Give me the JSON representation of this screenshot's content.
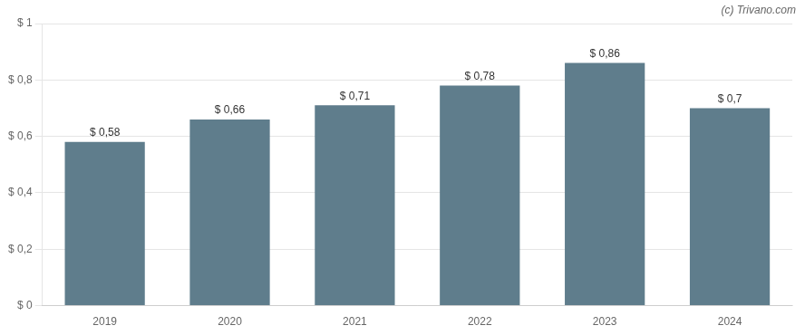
{
  "chart_data": {
    "type": "bar",
    "categories": [
      "2019",
      "2020",
      "2021",
      "2022",
      "2023",
      "2024"
    ],
    "values": [
      0.58,
      0.66,
      0.71,
      0.78,
      0.86,
      0.7
    ],
    "value_labels": [
      "$ 0,58",
      "$ 0,66",
      "$ 0,71",
      "$ 0,78",
      "$ 0,86",
      "$ 0,7"
    ],
    "data_labels": true,
    "color": "#5f7d8c",
    "ylim": [
      0,
      1.0
    ],
    "yticks": [
      {
        "value": 0,
        "label": "$ 0"
      },
      {
        "value": 0.2,
        "label": "$ 0,2"
      },
      {
        "value": 0.4,
        "label": "$ 0,4"
      },
      {
        "value": 0.6,
        "label": "$ 0,6"
      },
      {
        "value": 0.8,
        "label": "$ 0,8"
      },
      {
        "value": 1.0,
        "label": "$ 1"
      }
    ],
    "grid": true,
    "annotations": [
      "(c) Trivano.com"
    ]
  }
}
